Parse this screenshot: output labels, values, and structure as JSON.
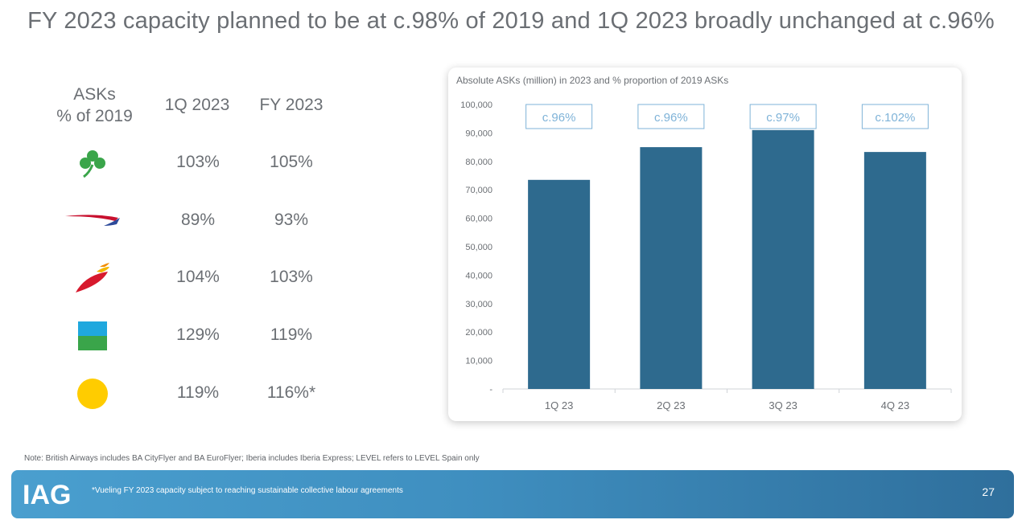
{
  "title": "FY 2023 capacity planned to be at c.98% of 2019 and 1Q 2023 broadly unchanged at c.96%",
  "table": {
    "headers": {
      "asks_line1": "ASKs",
      "asks_line2": "% of 2019",
      "q1": "1Q 2023",
      "fy": "FY 2023"
    },
    "rows": [
      {
        "logo": "aer-lingus-shamrock-logo",
        "q1": "103%",
        "fy": "105%"
      },
      {
        "logo": "british-airways-speedmarque-logo",
        "q1": "89%",
        "fy": "93%"
      },
      {
        "logo": "iberia-logo",
        "q1": "104%",
        "fy": "103%"
      },
      {
        "logo": "level-logo",
        "q1": "129%",
        "fy": "119%"
      },
      {
        "logo": "vueling-logo",
        "q1": "119%",
        "fy": "116%*"
      }
    ]
  },
  "chart_data": {
    "type": "bar",
    "title": "Absolute ASKs (million) in 2023 and % proportion of 2019 ASKs",
    "categories": [
      "1Q 23",
      "2Q 23",
      "3Q 23",
      "4Q 23"
    ],
    "values": [
      73500,
      85000,
      91000,
      83300
    ],
    "box_labels": [
      "c.96%",
      "c.96%",
      "c.97%",
      "c.102%"
    ],
    "ylim": [
      0,
      100000
    ],
    "yticks": [
      "-",
      "10,000",
      "20,000",
      "30,000",
      "40,000",
      "50,000",
      "60,000",
      "70,000",
      "80,000",
      "90,000",
      "100,000"
    ],
    "bar_color": "#2e6a8e",
    "label_color": "#7fb3d8",
    "grid": false
  },
  "note": "Note: British Airways includes BA CityFlyer and BA EuroFlyer; Iberia includes Iberia Express; LEVEL refers to LEVEL Spain only",
  "footer": {
    "logo_text": "IAG",
    "note": "*Vueling FY 2023 capacity subject to reaching sustainable collective labour agreements",
    "page_number": "27"
  }
}
